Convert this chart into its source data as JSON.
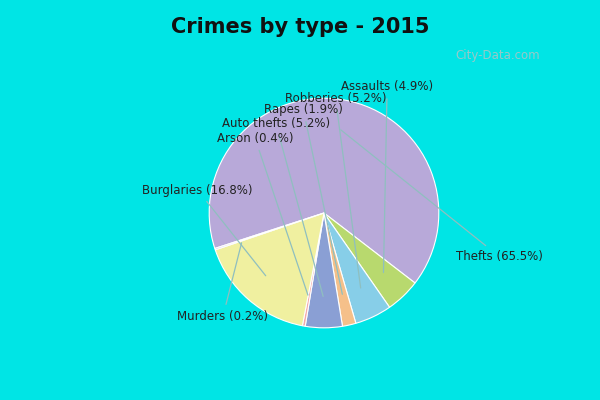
{
  "title": "Crimes by type - 2015",
  "slices": [
    {
      "label": "Thefts (65.5%)",
      "value": 65.5,
      "color": "#b8a9d9"
    },
    {
      "label": "Assaults (4.9%)",
      "value": 4.9,
      "color": "#b8d96e"
    },
    {
      "label": "Robberies (5.2%)",
      "value": 5.2,
      "color": "#87cee8"
    },
    {
      "label": "Rapes (1.9%)",
      "value": 1.9,
      "color": "#f5c08a"
    },
    {
      "label": "Auto thefts (5.2%)",
      "value": 5.2,
      "color": "#8a9fd4"
    },
    {
      "label": "Arson (0.4%)",
      "value": 0.4,
      "color": "#f5aaaa"
    },
    {
      "label": "Burglaries (16.8%)",
      "value": 16.8,
      "color": "#f0f0a0"
    },
    {
      "label": "Murders (0.2%)",
      "value": 0.2,
      "color": "#c8b8e8"
    }
  ],
  "bg_color": "#d8ede0",
  "top_bar_color": "#00e5e5",
  "bottom_bar_color": "#00e5e5",
  "title_fontsize": 15,
  "label_fontsize": 8.5,
  "top_bar_height": 0.135,
  "bottom_bar_height": 0.07
}
